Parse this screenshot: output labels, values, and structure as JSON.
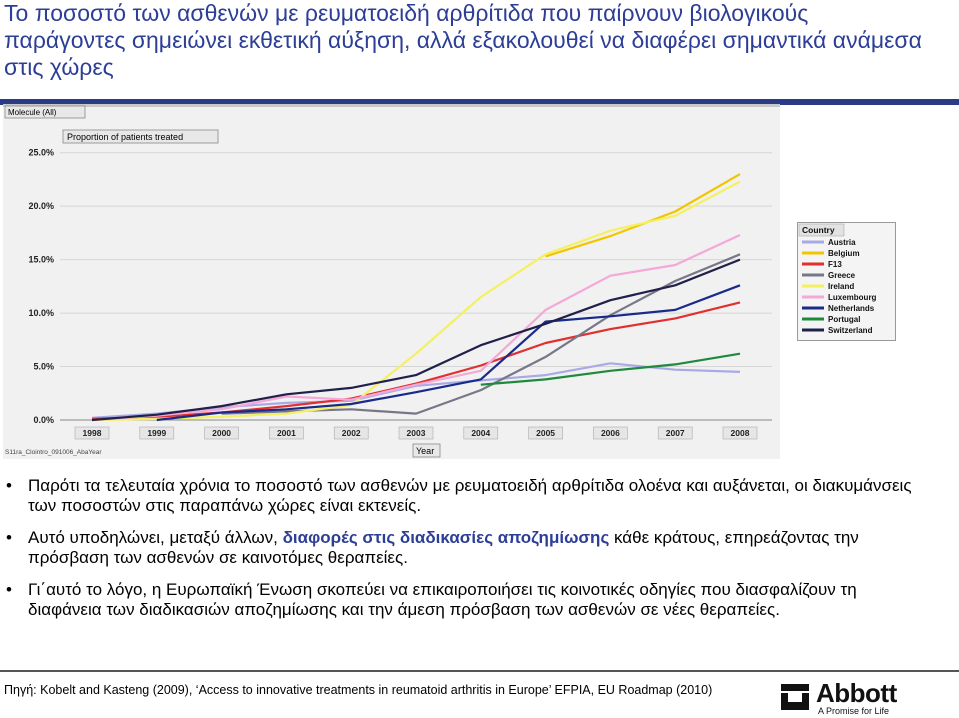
{
  "title": "Το ποσοστό των ασθενών με ρευματοειδή αρθρίτιδα που παίρνουν βιολογικούς παράγοντες σημειώνει εκθετική αύξηση, αλλά εξακολουθεί να διαφέρει σημαντικά ανάμεσα στις χώρες",
  "bullets": [
    {
      "text": "Παρότι τα τελευταία χρόνια το ποσοστό των ασθενών με ρευματοειδή αρθρίτιδα ολοένα και αυξάνεται, οι διακυμάνσεις των ποσοστών στις παραπάνω χώρες είναι εκτενείς."
    },
    {
      "pre": "Αυτό υποδηλώνει, μεταξύ άλλων, ",
      "highlight": "διαφορές στις διαδικασίες αποζημίωσης",
      "post": " κάθε κράτους, επηρεάζοντας την πρόσβαση των ασθενών σε καινοτόμες θεραπείες."
    },
    {
      "text": "Γι΄αυτό το λόγο, η Ευρωπαϊκή Ένωση σκοπεύει να επικαιροποιήσει τις  κοινοτικές οδηγίες που διασφαλίζουν τη διαφάνεια των διαδικασιών αποζημίωσης και την άμεση πρόσβαση των ασθενών σε νέες θεραπείες."
    }
  ],
  "source": "Πηγή: Kobelt and Kasteng (2009), ‘Access to innovative treatments in reumatoid arthritis in Europe’ EFPIA, EU Roadmap (2010)",
  "logo": {
    "name": "Abbott",
    "tagline": "A Promise for Life"
  },
  "colors": {
    "title": "#2c3e96",
    "rule": "#2b3b86",
    "highlight": "#2c3e96"
  },
  "chart_data": {
    "type": "line",
    "filter_label": "Molecule (All)",
    "title": "Proportion of patients treated",
    "xlabel": "Year",
    "footnote": "S11ra_Clointro_091006_AbaYear",
    "legend_title": "Country",
    "legend_position": "right",
    "grid": true,
    "categories": [
      "1998",
      "1999",
      "2000",
      "2001",
      "2002",
      "2003",
      "2004",
      "2005",
      "2006",
      "2007",
      "2008"
    ],
    "y_ticks": [
      "0.0%",
      "5.0%",
      "10.0%",
      "15.0%",
      "20.0%",
      "25.0%"
    ],
    "ylim": [
      0,
      26
    ],
    "series": [
      {
        "name": "Austria",
        "color": "#a9a9e6",
        "values": [
          0.2,
          0.6,
          1.2,
          1.6,
          1.8,
          3.2,
          3.7,
          4.2,
          5.3,
          4.7,
          4.5
        ]
      },
      {
        "name": "Belgium",
        "color": "#f2c500",
        "values": [
          null,
          null,
          null,
          null,
          null,
          null,
          null,
          15.3,
          17.2,
          19.5,
          23.0
        ]
      },
      {
        "name": "F13",
        "color": "#e03030",
        "values": [
          0.1,
          0.3,
          0.7,
          1.3,
          2.0,
          3.4,
          5.1,
          7.2,
          8.5,
          9.5,
          11.0
        ]
      },
      {
        "name": "Greece",
        "color": "#777788",
        "values": [
          null,
          null,
          0.6,
          0.8,
          1.0,
          0.6,
          2.8,
          5.9,
          9.8,
          13.0,
          15.5
        ]
      },
      {
        "name": "Ireland",
        "color": "#f4f061",
        "values": [
          0.0,
          0.1,
          0.3,
          0.6,
          1.4,
          6.2,
          11.5,
          15.5,
          17.7,
          19.1,
          22.3
        ]
      },
      {
        "name": "Luxembourg",
        "color": "#f3a8d8",
        "values": [
          0.0,
          0.4,
          1.0,
          2.2,
          1.9,
          3.3,
          4.6,
          10.3,
          13.5,
          14.5,
          17.3
        ]
      },
      {
        "name": "Netherlands",
        "color": "#1a2a8a",
        "values": [
          null,
          0.0,
          0.7,
          1.0,
          1.5,
          2.6,
          3.8,
          9.2,
          9.7,
          10.3,
          12.6
        ]
      },
      {
        "name": "Portugal",
        "color": "#1e8a3c",
        "values": [
          null,
          null,
          null,
          null,
          null,
          null,
          3.3,
          3.8,
          4.6,
          5.2,
          6.2
        ]
      },
      {
        "name": "Switzerland",
        "color": "#20204a",
        "values": [
          0.0,
          0.5,
          1.3,
          2.4,
          3.0,
          4.2,
          7.0,
          9.0,
          11.2,
          12.6,
          15.0
        ]
      }
    ]
  }
}
